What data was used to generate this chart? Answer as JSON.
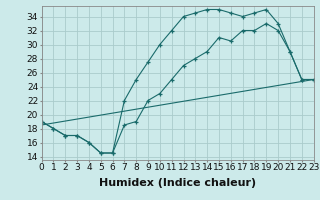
{
  "xlabel": "Humidex (Indice chaleur)",
  "background_color": "#cceaea",
  "grid_color": "#aacccc",
  "line_color": "#1a6b6b",
  "xlim": [
    0,
    23
  ],
  "ylim": [
    13.5,
    35.5
  ],
  "xticks": [
    0,
    1,
    2,
    3,
    4,
    5,
    6,
    7,
    8,
    9,
    10,
    11,
    12,
    13,
    14,
    15,
    16,
    17,
    18,
    19,
    20,
    21,
    22,
    23
  ],
  "yticks": [
    14,
    16,
    18,
    20,
    22,
    24,
    26,
    28,
    30,
    32,
    34
  ],
  "line1_x": [
    0,
    1,
    2,
    3,
    4,
    5,
    6,
    7,
    8,
    9,
    10,
    11,
    12,
    13,
    14,
    15,
    16,
    17,
    18,
    19,
    20,
    21,
    22,
    23
  ],
  "line1_y": [
    19,
    18,
    17,
    17,
    16,
    14.5,
    14.5,
    22,
    25,
    27.5,
    30,
    32,
    34,
    34.5,
    35,
    35,
    34.5,
    34,
    34.5,
    35,
    33,
    29,
    25,
    25
  ],
  "line2_x": [
    0,
    1,
    2,
    3,
    4,
    5,
    6,
    7,
    8,
    9,
    10,
    11,
    12,
    13,
    14,
    15,
    16,
    17,
    18,
    19,
    20,
    21,
    22,
    23
  ],
  "line2_y": [
    19,
    18,
    17,
    17,
    16,
    14.5,
    14.5,
    18.5,
    19,
    22,
    23,
    25,
    27,
    28,
    29,
    31,
    30.5,
    32,
    32,
    33,
    32,
    29,
    25,
    25
  ],
  "line3_x": [
    0,
    23
  ],
  "line3_y": [
    18.5,
    25
  ],
  "fontsize_xlabel": 8,
  "fontsize_ticks": 6.5
}
